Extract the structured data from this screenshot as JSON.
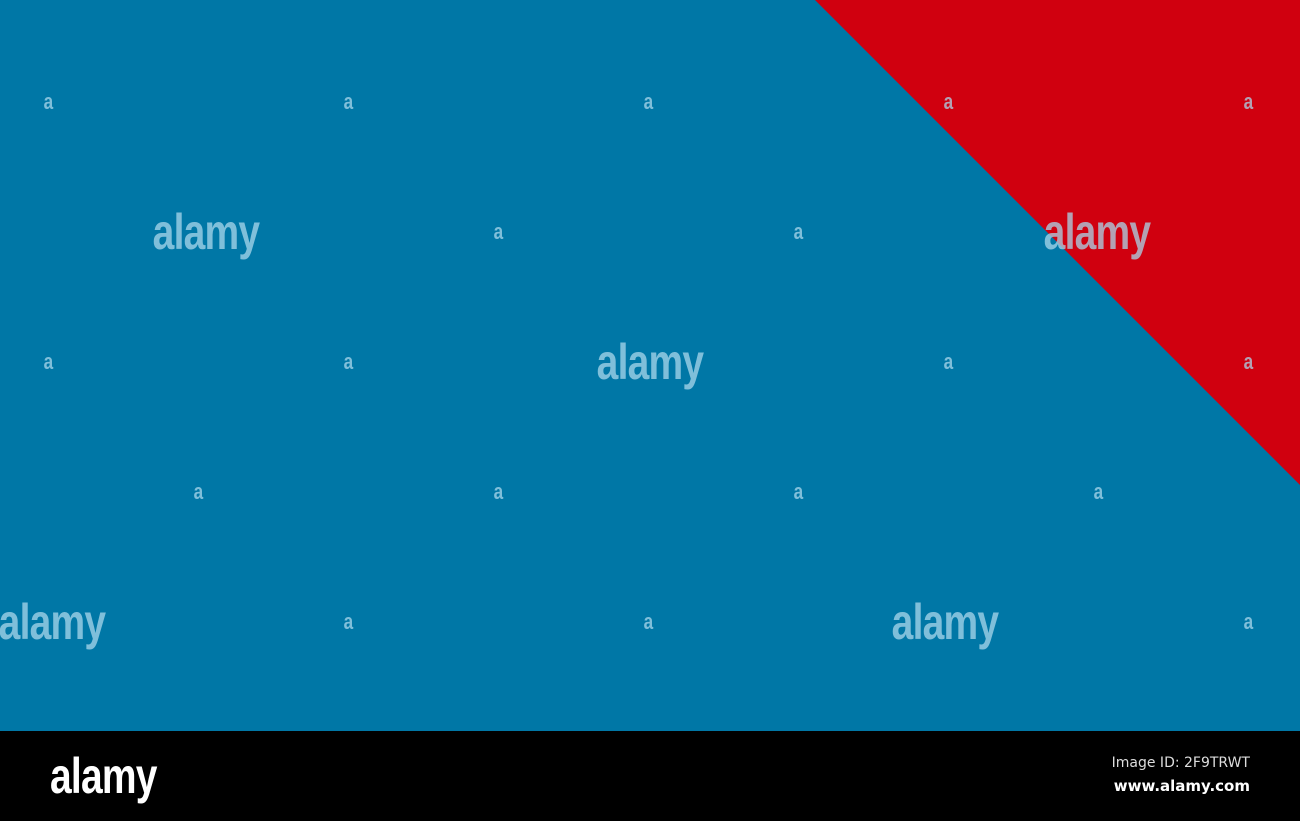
{
  "image": {
    "background_color": "#0077A6",
    "triangle_color": "#D0000F"
  },
  "watermark": {
    "wordmark": "alamy",
    "small_mark": "a"
  },
  "footer": {
    "logo": "alamy",
    "image_id": "Image ID: 2F9TRWT",
    "website": "www.alamy.com"
  }
}
